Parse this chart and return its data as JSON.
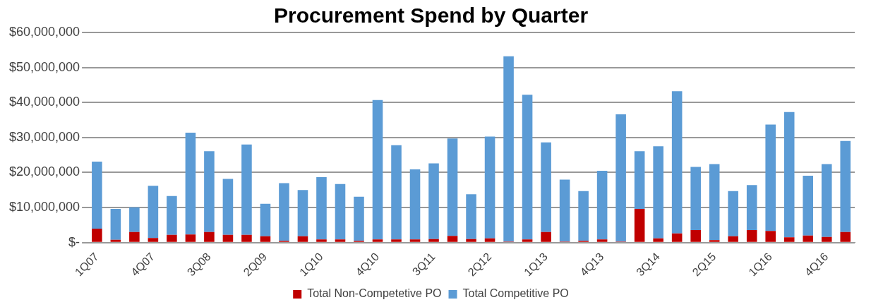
{
  "chart_data": {
    "type": "bar",
    "title": "Procurement Spend by Quarter",
    "stacked": true,
    "grid": "y",
    "legend": "bottom",
    "categories": [
      "1Q07",
      null,
      null,
      "4Q07",
      null,
      null,
      "3Q08",
      null,
      null,
      "2Q09",
      null,
      null,
      "1Q10",
      null,
      null,
      "4Q10",
      null,
      null,
      "3Q11",
      null,
      null,
      "2Q12",
      null,
      null,
      "1Q13",
      null,
      null,
      "4Q13",
      null,
      null,
      "3Q14",
      null,
      null,
      "2Q15",
      null,
      null,
      "1Q16",
      null,
      null,
      "4Q16",
      null
    ],
    "ylim": [
      0,
      60000000
    ],
    "yticks": [
      {
        "value": 0,
        "label": "$-"
      },
      {
        "value": 10000000,
        "label": "$10,000,000"
      },
      {
        "value": 20000000,
        "label": "$20,000,000"
      },
      {
        "value": 30000000,
        "label": "$30,000,000"
      },
      {
        "value": 40000000,
        "label": "$40,000,000"
      },
      {
        "value": 50000000,
        "label": "$50,000,000"
      },
      {
        "value": 60000000,
        "label": "$60,000,000"
      }
    ],
    "series": [
      {
        "name": "Total Non-Competetive PO",
        "color": "#c00000",
        "values": [
          4000000,
          800000,
          3000000,
          1300000,
          2200000,
          2300000,
          3000000,
          2200000,
          2200000,
          1800000,
          500000,
          1800000,
          900000,
          900000,
          500000,
          900000,
          900000,
          900000,
          1000000,
          1900000,
          1000000,
          1200000,
          300000,
          900000,
          3000000,
          300000,
          500000,
          900000,
          300000,
          9600000,
          1200000,
          2600000,
          3600000,
          700000,
          1800000,
          3600000,
          3300000,
          1500000,
          2000000,
          1600000,
          3000000
        ]
      },
      {
        "name": "Total Competitive PO",
        "color": "#5b9bd5",
        "values": [
          19100000,
          8800000,
          7100000,
          14900000,
          11100000,
          29100000,
          23100000,
          16000000,
          25800000,
          9300000,
          16500000,
          13200000,
          17800000,
          15800000,
          12600000,
          39800000,
          26900000,
          20000000,
          21600000,
          27800000,
          12800000,
          29100000,
          52900000,
          41300000,
          25600000,
          17700000,
          14200000,
          19600000,
          36300000,
          16500000,
          26300000,
          40600000,
          18000000,
          21700000,
          12900000,
          12800000,
          30400000,
          35800000,
          17100000,
          20800000,
          26000000
        ]
      }
    ]
  }
}
